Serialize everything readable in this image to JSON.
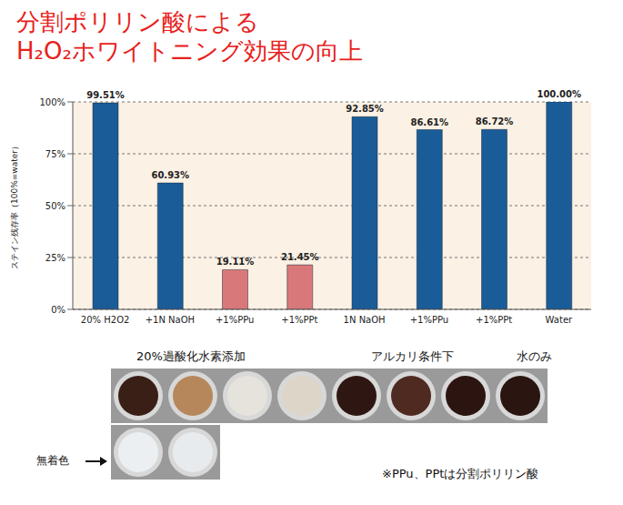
{
  "chart_data": {
    "type": "bar",
    "title": "分割ポリリン酸による\nH₂O₂ホワイトニング効果の向上",
    "y_label": "ステイン残存率（100%=water）",
    "categories": [
      "20% H2O2",
      "+1N NaOH",
      "+1%PPu",
      "+1%PPt",
      "1N NaOH",
      "+1%PPu",
      "+1%PPt",
      "Water"
    ],
    "values": [
      99.51,
      60.93,
      19.11,
      21.45,
      92.85,
      86.61,
      86.72,
      100.0
    ],
    "value_labels": [
      "99.51%",
      "60.93%",
      "19.11%",
      "21.45%",
      "92.85%",
      "86.61%",
      "86.72%",
      "100.00%"
    ],
    "colors": [
      "#1a5c98",
      "#1a5c98",
      "#d9787b",
      "#d9787b",
      "#1a5c98",
      "#1a5c98",
      "#1a5c98",
      "#1a5c98"
    ],
    "ylim": [
      0,
      100
    ],
    "yticks": [
      {
        "value": 0,
        "label": "0%"
      },
      {
        "value": 25,
        "label": "25%"
      },
      {
        "value": 50,
        "label": "50%"
      },
      {
        "value": 75,
        "label": "75%"
      },
      {
        "value": 100,
        "label": "100%"
      }
    ],
    "grid": true,
    "data_labels": true,
    "annotations": [
      "20%過酸化水素添加",
      "アルカリ条件下",
      "水のみ",
      "無着色",
      "※PPu、PPtは分割ポリリン酸"
    ]
  }
}
